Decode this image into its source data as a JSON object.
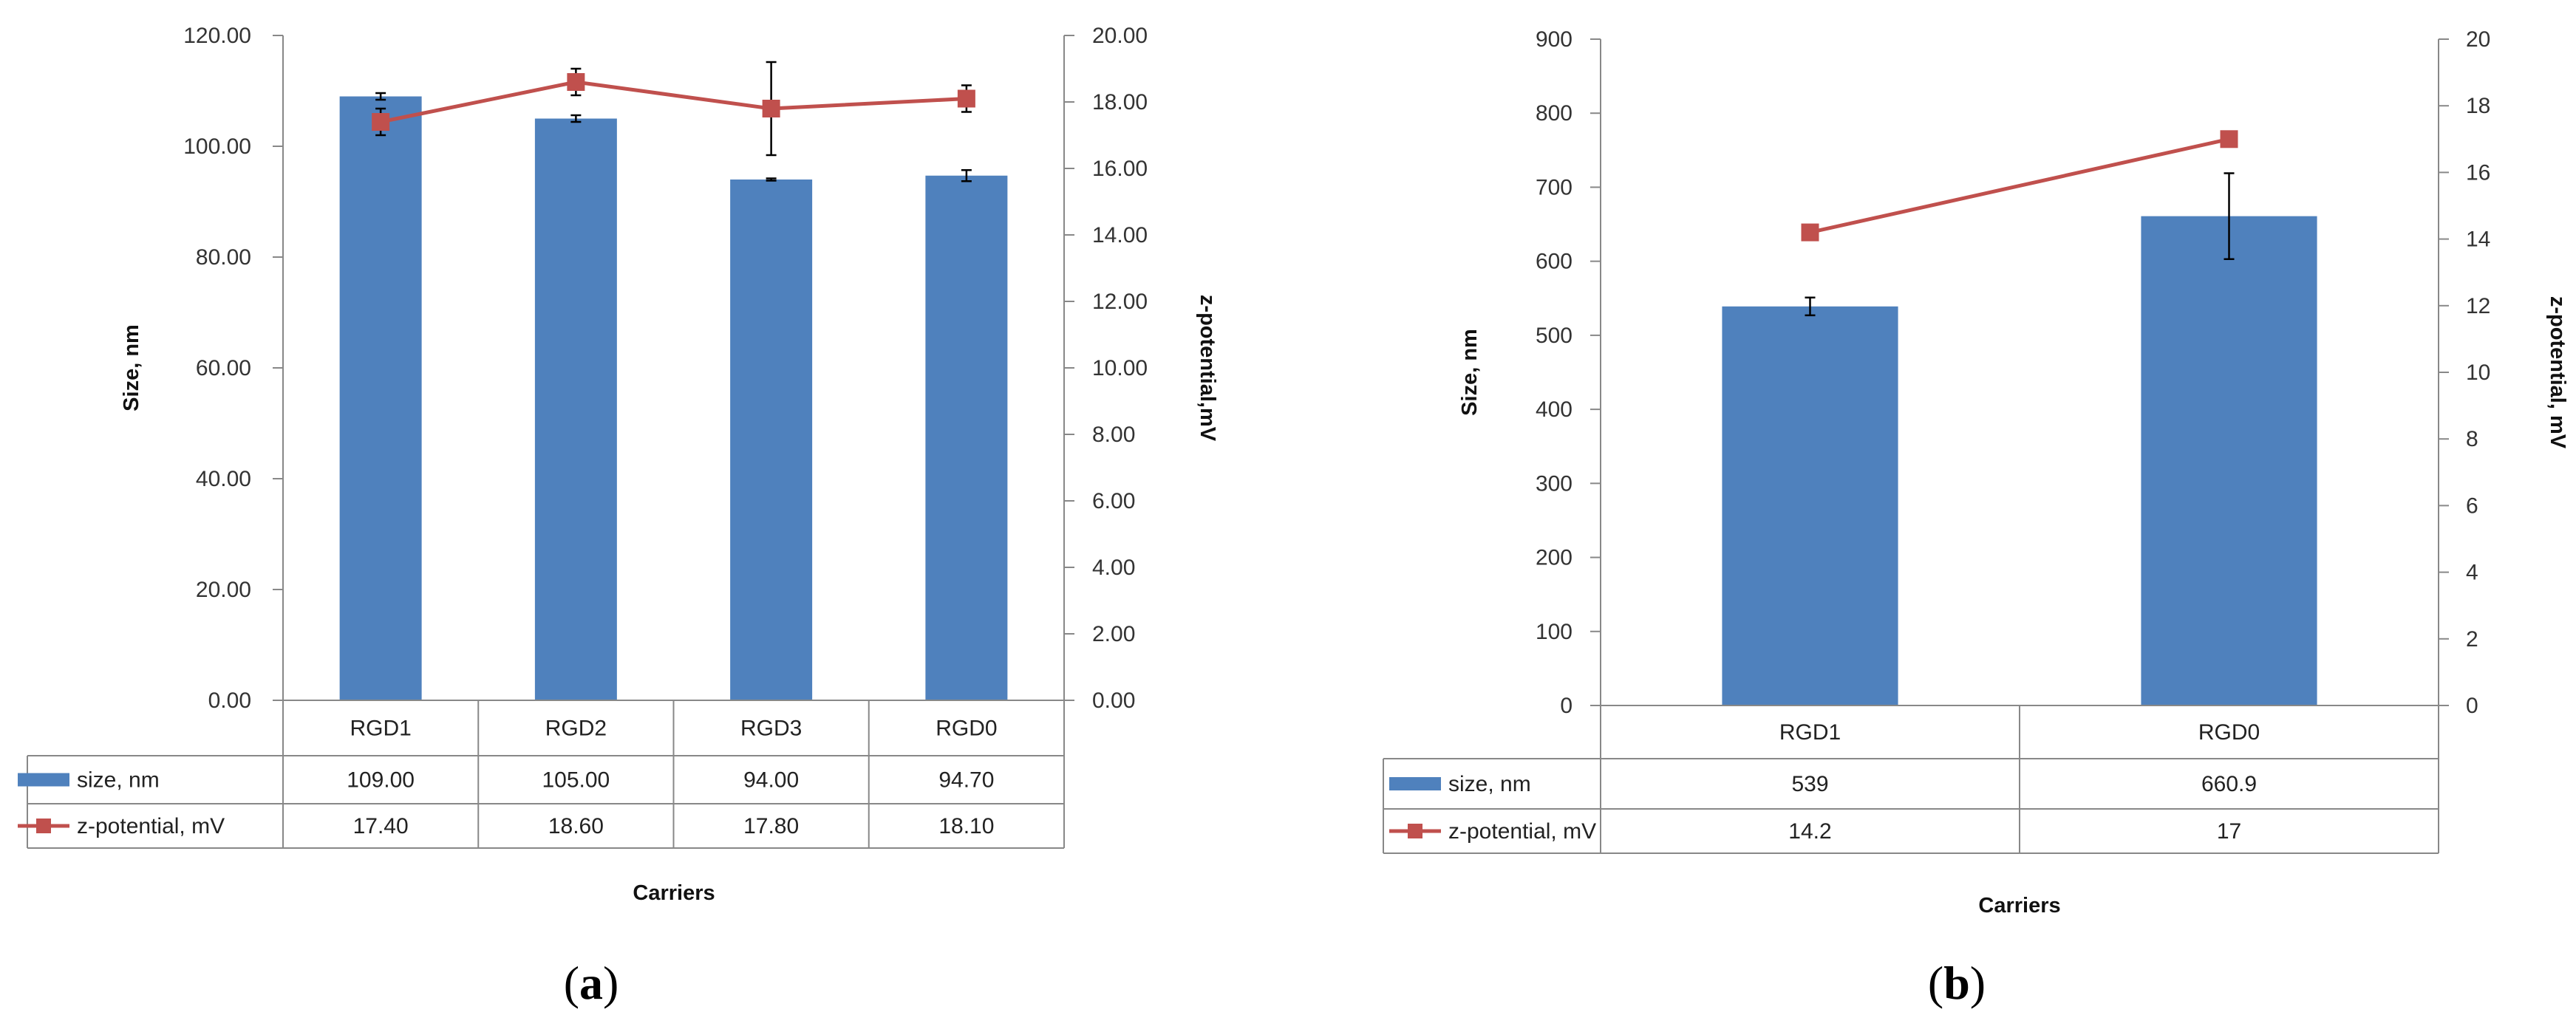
{
  "colors": {
    "size": "#4F81BD",
    "zeta": "#C0504D",
    "grid": "#BFBFBF",
    "axis": "#888888"
  },
  "chart_data": [
    {
      "type": "bar",
      "caption_letter": "a",
      "categories": [
        "RGD1",
        "RGD2",
        "RGD3",
        "RGD0"
      ],
      "xlabel": "Carriers",
      "ylabel": "Size, nm",
      "y2label": "z-potential,mV",
      "ylim": [
        0,
        120
      ],
      "y_ticks": [
        "0.00",
        "20.00",
        "40.00",
        "60.00",
        "80.00",
        "100.00",
        "120.00"
      ],
      "y2lim": [
        0,
        20
      ],
      "y2_ticks": [
        "0.00",
        "2.00",
        "4.00",
        "6.00",
        "8.00",
        "10.00",
        "12.00",
        "14.00",
        "16.00",
        "18.00",
        "20.00"
      ],
      "grid": false,
      "legend": "data table",
      "series": [
        {
          "name": "size, nm",
          "type": "bar",
          "axis": "left",
          "values": [
            109.0,
            105.0,
            94.0,
            94.7
          ],
          "display": [
            "109.00",
            "105.00",
            "94.00",
            "94.70"
          ],
          "errors": [
            0.6,
            0.6,
            0.2,
            1.0
          ]
        },
        {
          "name": "z-potential, mV",
          "type": "line",
          "axis": "right",
          "values": [
            17.4,
            18.6,
            17.8,
            18.1
          ],
          "display": [
            "17.40",
            "18.60",
            "17.80",
            "18.10"
          ],
          "errors": [
            0.4,
            0.4,
            1.4,
            0.4
          ]
        }
      ]
    },
    {
      "type": "bar",
      "caption_letter": "b",
      "categories": [
        "RGD1",
        "RGD0"
      ],
      "xlabel": "Carriers",
      "ylabel": "Size, nm",
      "y2label": "z-potential, mV",
      "ylim": [
        0,
        900
      ],
      "y_ticks": [
        "0",
        "100",
        "200",
        "300",
        "400",
        "500",
        "600",
        "700",
        "800",
        "900"
      ],
      "y2lim": [
        0,
        20
      ],
      "y2_ticks": [
        "0",
        "2",
        "4",
        "6",
        "8",
        "10",
        "12",
        "14",
        "16",
        "18",
        "20"
      ],
      "grid": false,
      "legend": "data table",
      "series": [
        {
          "name": "size, nm",
          "type": "bar",
          "axis": "left",
          "values": [
            539,
            660.9
          ],
          "display": [
            "539",
            "660.9"
          ],
          "errors": [
            12,
            58
          ]
        },
        {
          "name": "z-potential, mV",
          "type": "line",
          "axis": "right",
          "values": [
            14.2,
            17
          ],
          "display": [
            "14.2",
            "17"
          ],
          "errors": [
            0,
            0
          ]
        }
      ]
    }
  ]
}
